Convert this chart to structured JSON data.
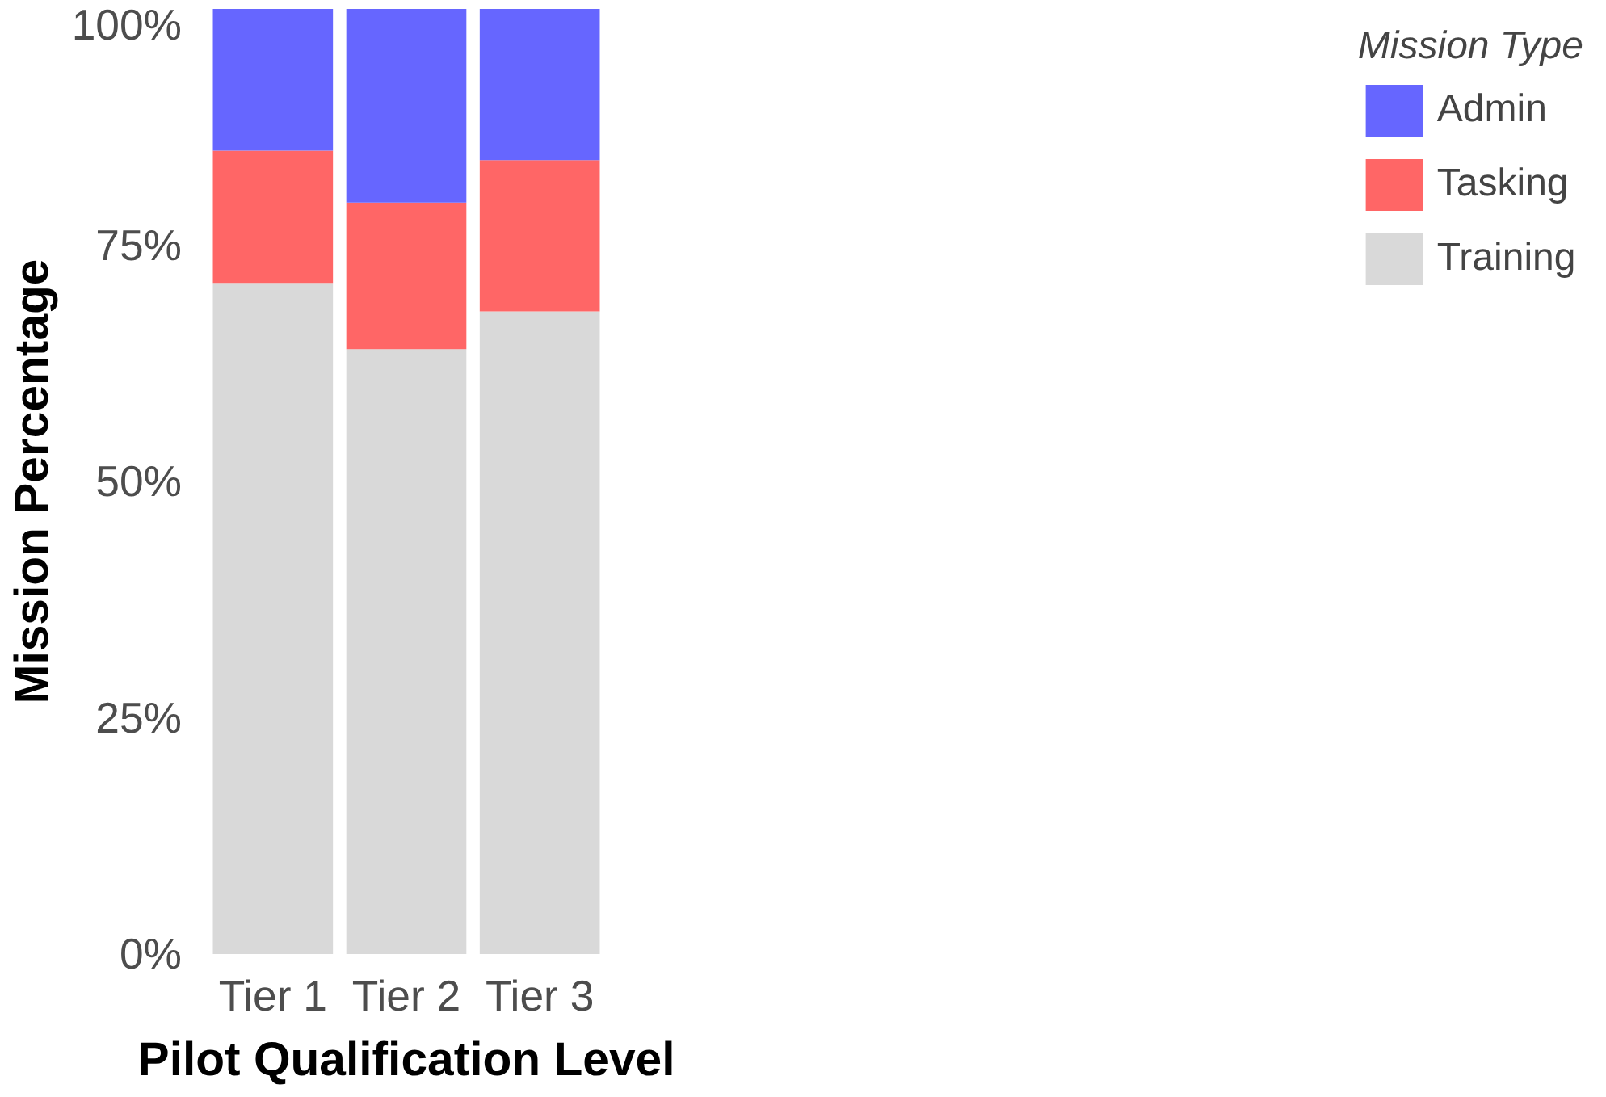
{
  "chart_data": {
    "type": "bar",
    "stacked": true,
    "xlabel": "Pilot Qualification Level",
    "ylabel": "Mission Percentage",
    "legend_title": "Mission Type",
    "legend": "right",
    "grid": false,
    "categories": [
      "Tier 1",
      "Tier 2",
      "Tier 3"
    ],
    "series": [
      {
        "name": "Training",
        "color": "#d9d9d9",
        "values": [
          71,
          64,
          68
        ]
      },
      {
        "name": "Tasking",
        "color": "#ff6666",
        "values": [
          14,
          15.5,
          16
        ]
      },
      {
        "name": "Admin",
        "color": "#6666ff",
        "values": [
          15,
          20.5,
          16
        ]
      }
    ],
    "ylim": [
      0,
      100
    ],
    "yticks": [
      {
        "value": 0,
        "label": "0%"
      },
      {
        "value": 25,
        "label": "25%"
      },
      {
        "value": 50,
        "label": "50%"
      },
      {
        "value": 75,
        "label": "75%"
      },
      {
        "value": 100,
        "label": "100%"
      }
    ]
  }
}
